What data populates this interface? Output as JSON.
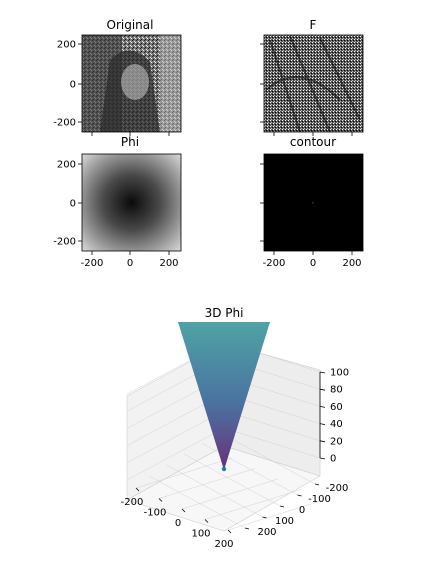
{
  "chart_data": [
    {
      "type": "image",
      "title": "Original",
      "x_ticks": [
        0
      ],
      "y_ticks": [
        200,
        0,
        -200
      ],
      "x_tick_labels_visible": false,
      "xlim": [
        -256,
        256
      ],
      "ylim": [
        -256,
        256
      ],
      "colormap": "gray",
      "content": "photograph"
    },
    {
      "type": "image",
      "title": "F",
      "x_ticks": [
        0
      ],
      "y_ticks": [
        200,
        0,
        -200
      ],
      "x_tick_labels_visible": false,
      "y_tick_labels_visible": false,
      "xlim": [
        -256,
        256
      ],
      "ylim": [
        -256,
        256
      ],
      "colormap": "gray",
      "content": "edge-map"
    },
    {
      "type": "heatmap",
      "title": "Phi",
      "x_ticks": [
        -200,
        0,
        200
      ],
      "y_ticks": [
        200,
        0,
        -200
      ],
      "xlim": [
        -256,
        256
      ],
      "ylim": [
        -256,
        256
      ],
      "colormap": "gray",
      "pattern": "radial-distance"
    },
    {
      "type": "image",
      "title": "contour",
      "x_ticks": [
        -200,
        0,
        200
      ],
      "y_ticks": [
        200,
        0,
        -200
      ],
      "y_tick_labels_visible": false,
      "xlim": [
        -256,
        256
      ],
      "ylim": [
        -256,
        256
      ],
      "colormap": "gray",
      "content": "mostly-black"
    },
    {
      "type": "surface3d",
      "title": "3D Phi",
      "x_ticks": [
        -200,
        -100,
        0,
        100,
        200
      ],
      "y_ticks": [
        -200,
        -100,
        0,
        100,
        200
      ],
      "z_ticks": [
        0,
        20,
        40,
        60,
        80,
        100
      ],
      "zlim": [
        0,
        100
      ],
      "apex": {
        "x": 0,
        "y": 0,
        "z": 0
      },
      "colormap": "viridis"
    }
  ],
  "colors": {
    "cone_top": "#4fa3a5",
    "cone_bottom": "#6a2f7a",
    "apex_marker": "#1f77b4",
    "pane_grid": "#d0d0d0"
  }
}
